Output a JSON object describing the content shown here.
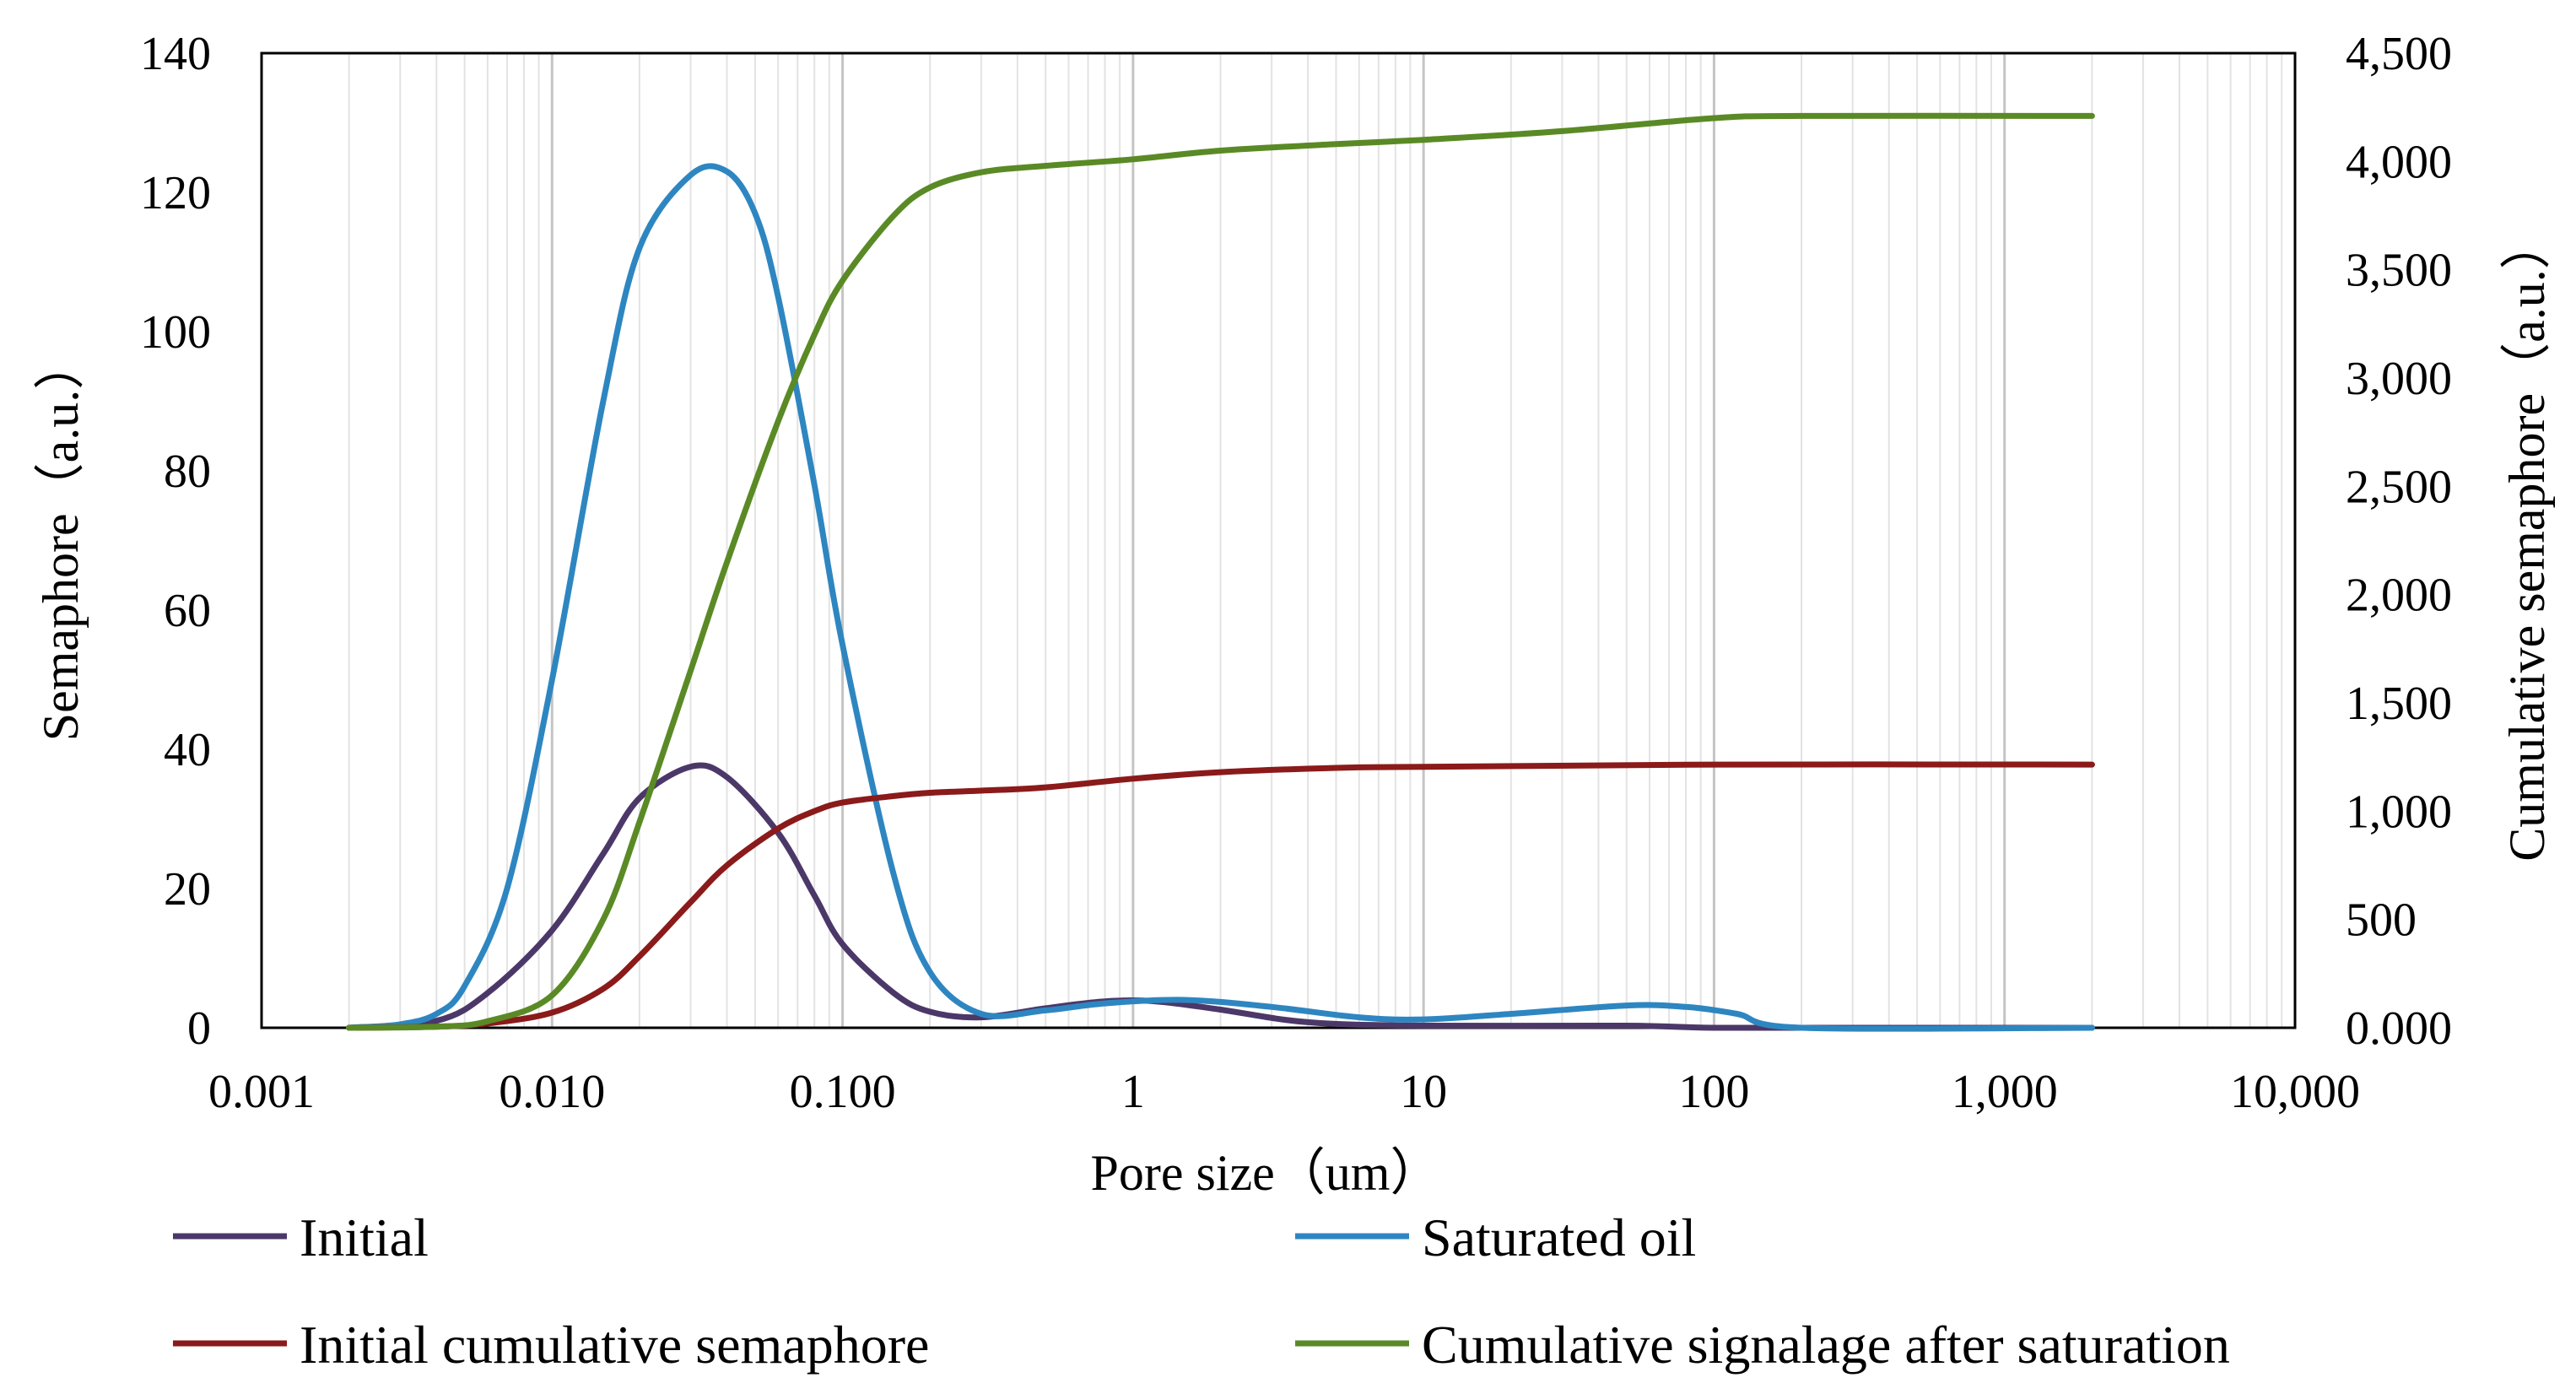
{
  "chart_data": {
    "type": "line",
    "xscale": "log",
    "xlabel": "Pore size（um）",
    "ylabel": "Semaphore（a.u.）",
    "y2label": "Cumulative semaphore（a.u.）",
    "xlim": [
      0.001,
      10000
    ],
    "ylim": [
      0,
      140
    ],
    "y2lim": [
      0,
      4500
    ],
    "xticks": [
      0.001,
      0.01,
      0.1,
      1,
      10,
      100,
      1000,
      10000
    ],
    "xtick_labels": [
      "0.001",
      "0.010",
      "0.100",
      "1",
      "10",
      "100",
      "1,000",
      "10,000"
    ],
    "yticks": [
      0,
      20,
      40,
      60,
      80,
      100,
      120,
      140
    ],
    "ytick_labels": [
      "0",
      "20",
      "40",
      "60",
      "80",
      "100",
      "120",
      "140"
    ],
    "y2ticks": [
      0,
      500,
      1000,
      1500,
      2000,
      2500,
      3000,
      3500,
      4000,
      4500
    ],
    "y2tick_labels": [
      "0.000",
      "500",
      "1,000",
      "1,500",
      "2,000",
      "2,500",
      "3,000",
      "3,500",
      "4,000",
      "4,500"
    ],
    "grid": "vertical minor and major log gridlines",
    "legend_position": "bottom",
    "series": [
      {
        "name": "Initial",
        "color": "#4b3868",
        "axis": "left",
        "x": [
          0.002,
          0.004,
          0.006,
          0.01,
          0.015,
          0.02,
          0.03,
          0.04,
          0.06,
          0.08,
          0.1,
          0.15,
          0.2,
          0.3,
          0.5,
          0.8,
          1.2,
          2,
          4,
          10,
          50,
          100,
          300,
          2000
        ],
        "y": [
          0,
          1,
          5,
          14,
          25,
          33,
          37.5,
          36,
          28,
          19,
          12,
          5,
          2.3,
          1.5,
          2.8,
          3.8,
          3.8,
          2.6,
          0.8,
          0.3,
          0.3,
          0,
          0,
          0
        ]
      },
      {
        "name": "Saturated oil",
        "color": "#2e86c1",
        "axis": "left",
        "x": [
          0.002,
          0.003,
          0.004,
          0.005,
          0.007,
          0.01,
          0.015,
          0.02,
          0.03,
          0.04,
          0.05,
          0.06,
          0.08,
          0.1,
          0.15,
          0.2,
          0.3,
          0.5,
          0.8,
          1.5,
          3,
          6,
          10,
          20,
          50,
          80,
          120,
          200,
          2000
        ],
        "y": [
          0,
          0.5,
          2,
          6,
          20,
          50,
          90,
          112,
          122.5,
          123,
          117,
          105,
          78,
          55,
          22,
          8,
          2,
          2.5,
          3.5,
          4,
          3,
          1.5,
          1.2,
          2,
          3.2,
          3,
          2,
          0,
          0
        ]
      },
      {
        "name": "Initial cumulative semaphore",
        "color": "#8b1a1a",
        "axis": "right",
        "x": [
          0.002,
          0.004,
          0.006,
          0.01,
          0.015,
          0.02,
          0.03,
          0.04,
          0.06,
          0.08,
          0.1,
          0.15,
          0.2,
          0.3,
          0.5,
          1,
          2,
          5,
          10,
          100,
          2000
        ],
        "y": [
          0,
          5,
          20,
          70,
          180,
          330,
          580,
          750,
          920,
          1000,
          1040,
          1070,
          1085,
          1095,
          1110,
          1150,
          1180,
          1200,
          1205,
          1215,
          1215
        ]
      },
      {
        "name": "Cumulative signalage after saturation",
        "color": "#5a8a25",
        "axis": "right",
        "x": [
          0.002,
          0.004,
          0.006,
          0.01,
          0.015,
          0.02,
          0.03,
          0.04,
          0.06,
          0.08,
          0.1,
          0.15,
          0.2,
          0.3,
          0.5,
          1,
          2,
          5,
          10,
          30,
          100,
          200,
          2000
        ],
        "y": [
          0,
          5,
          30,
          150,
          500,
          950,
          1650,
          2150,
          2800,
          3200,
          3450,
          3750,
          3880,
          3950,
          3980,
          4010,
          4050,
          4080,
          4100,
          4140,
          4200,
          4210,
          4210
        ]
      }
    ]
  }
}
